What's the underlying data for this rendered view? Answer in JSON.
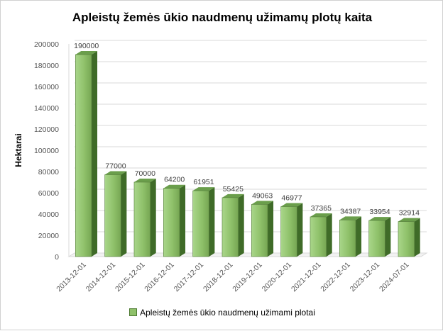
{
  "chart_data": {
    "type": "bar",
    "title": "Apleistų žemės ūkio naudmenų užimamų plotų kaita",
    "xlabel": "",
    "ylabel": "Hektarai",
    "ylim": [
      0,
      200000
    ],
    "yticks": [
      0,
      20000,
      40000,
      60000,
      80000,
      100000,
      120000,
      140000,
      160000,
      180000,
      200000
    ],
    "grid": true,
    "legend_position": "bottom",
    "categories": [
      "2013-12-01",
      "2014-12-01",
      "2015-12-01",
      "2016-12-01",
      "2017-12-01",
      "2018-12-01",
      "2019-12-01",
      "2020-12-01",
      "2021-12-01",
      "2022-12-01",
      "2023-12-01",
      "2024-07-01"
    ],
    "series": [
      {
        "name": "Apleistų žemės ūkio naudmenų užimami plotai",
        "values": [
          190000,
          77000,
          70000,
          64200,
          61951,
          55425,
          49063,
          46977,
          37365,
          34387,
          33954,
          32914
        ],
        "color": "#8fc16a"
      }
    ]
  }
}
